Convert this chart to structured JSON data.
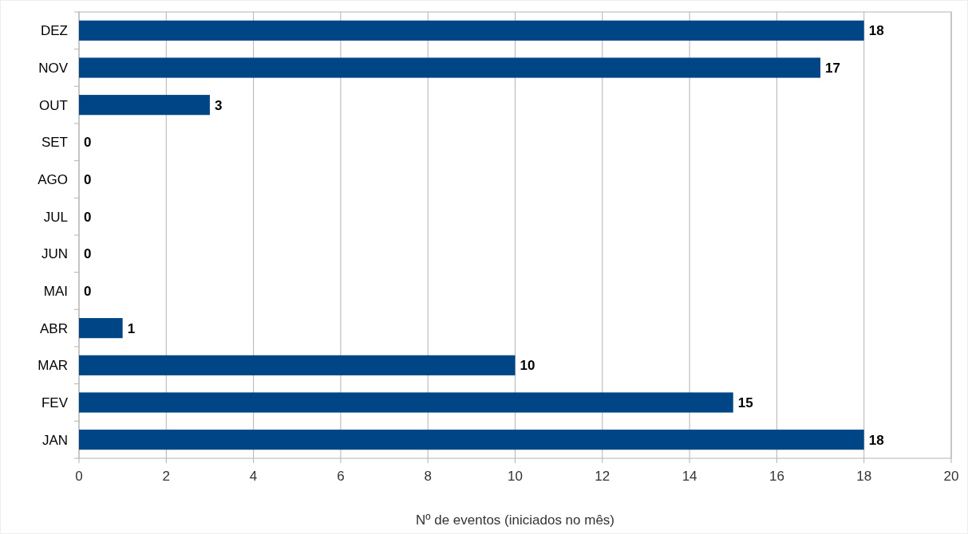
{
  "chart_data": {
    "type": "bar",
    "orientation": "horizontal",
    "categories": [
      "DEZ",
      "NOV",
      "OUT",
      "SET",
      "AGO",
      "JUL",
      "JUN",
      "MAI",
      "ABR",
      "MAR",
      "FEV",
      "JAN"
    ],
    "values": [
      18,
      17,
      3,
      0,
      0,
      0,
      0,
      0,
      1,
      10,
      15,
      18
    ],
    "color": "#004586",
    "xlim": [
      0,
      20
    ],
    "xticks": [
      0,
      2,
      4,
      6,
      8,
      10,
      12,
      14,
      16,
      18,
      20
    ],
    "xlabel": "Nº de eventos (iniciados no mês)",
    "grid": "x",
    "data_labels": true
  }
}
